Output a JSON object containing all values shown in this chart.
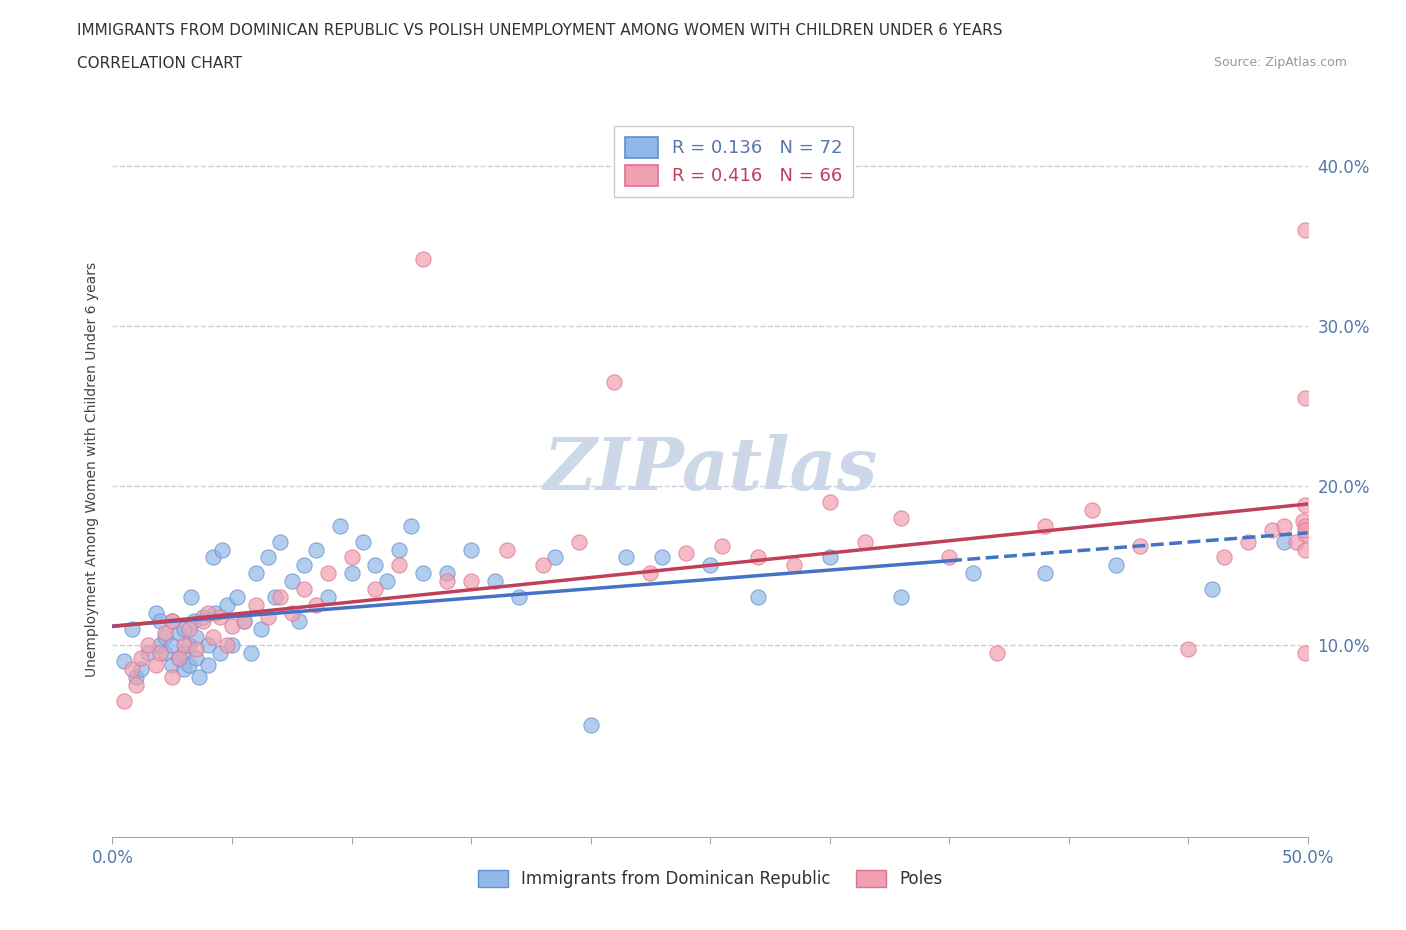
{
  "title_line1": "IMMIGRANTS FROM DOMINICAN REPUBLIC VS POLISH UNEMPLOYMENT AMONG WOMEN WITH CHILDREN UNDER 6 YEARS",
  "title_line2": "CORRELATION CHART",
  "source_text": "Source: ZipAtlas.com",
  "ylabel": "Unemployment Among Women with Children Under 6 years",
  "xlim": [
    0.0,
    0.5
  ],
  "ylim": [
    -0.02,
    0.44
  ],
  "ytick_positions": [
    0.1,
    0.2,
    0.3,
    0.4
  ],
  "ytick_labels": [
    "10.0%",
    "20.0%",
    "30.0%",
    "40.0%"
  ],
  "grid_color": "#c8d0d8",
  "background_color": "#ffffff",
  "series1_color": "#92b8e8",
  "series2_color": "#f0a0b0",
  "series1_edge": "#6090d0",
  "series2_edge": "#e07090",
  "series1_label": "Immigrants from Dominican Republic",
  "series2_label": "Poles",
  "series1_R": "0.136",
  "series1_N": "72",
  "series2_R": "0.416",
  "series2_N": "66",
  "series1_line_color": "#4472c4",
  "series2_line_color": "#c0405a",
  "watermark": "ZIPatlas",
  "watermark_color": "#ccd8e8",
  "axis_color": "#5577aa",
  "series1_x": [
    0.005,
    0.008,
    0.01,
    0.012,
    0.015,
    0.018,
    0.02,
    0.02,
    0.022,
    0.022,
    0.025,
    0.025,
    0.025,
    0.028,
    0.028,
    0.03,
    0.03,
    0.03,
    0.032,
    0.032,
    0.033,
    0.034,
    0.035,
    0.035,
    0.036,
    0.038,
    0.04,
    0.04,
    0.042,
    0.043,
    0.045,
    0.046,
    0.048,
    0.05,
    0.052,
    0.055,
    0.058,
    0.06,
    0.062,
    0.065,
    0.068,
    0.07,
    0.075,
    0.078,
    0.08,
    0.085,
    0.09,
    0.095,
    0.1,
    0.105,
    0.11,
    0.115,
    0.12,
    0.125,
    0.13,
    0.14,
    0.15,
    0.16,
    0.17,
    0.185,
    0.2,
    0.215,
    0.23,
    0.25,
    0.27,
    0.3,
    0.33,
    0.36,
    0.39,
    0.42,
    0.46,
    0.49
  ],
  "series1_y": [
    0.09,
    0.11,
    0.08,
    0.085,
    0.095,
    0.12,
    0.1,
    0.115,
    0.095,
    0.105,
    0.088,
    0.1,
    0.115,
    0.092,
    0.108,
    0.11,
    0.095,
    0.085,
    0.1,
    0.088,
    0.13,
    0.115,
    0.092,
    0.105,
    0.08,
    0.118,
    0.1,
    0.088,
    0.155,
    0.12,
    0.095,
    0.16,
    0.125,
    0.1,
    0.13,
    0.115,
    0.095,
    0.145,
    0.11,
    0.155,
    0.13,
    0.165,
    0.14,
    0.115,
    0.15,
    0.16,
    0.13,
    0.175,
    0.145,
    0.165,
    0.15,
    0.14,
    0.16,
    0.175,
    0.145,
    0.145,
    0.16,
    0.14,
    0.13,
    0.155,
    0.05,
    0.155,
    0.155,
    0.15,
    0.13,
    0.155,
    0.13,
    0.145,
    0.145,
    0.15,
    0.135,
    0.165
  ],
  "series2_x": [
    0.005,
    0.008,
    0.01,
    0.012,
    0.015,
    0.018,
    0.02,
    0.022,
    0.025,
    0.025,
    0.028,
    0.03,
    0.032,
    0.035,
    0.038,
    0.04,
    0.042,
    0.045,
    0.048,
    0.05,
    0.055,
    0.06,
    0.065,
    0.07,
    0.075,
    0.08,
    0.085,
    0.09,
    0.1,
    0.11,
    0.12,
    0.13,
    0.14,
    0.15,
    0.165,
    0.18,
    0.195,
    0.21,
    0.225,
    0.24,
    0.255,
    0.27,
    0.285,
    0.3,
    0.315,
    0.33,
    0.35,
    0.37,
    0.39,
    0.41,
    0.43,
    0.45,
    0.465,
    0.475,
    0.485,
    0.49,
    0.495,
    0.498,
    0.499,
    0.499,
    0.499,
    0.499,
    0.499,
    0.499,
    0.499,
    0.499
  ],
  "series2_y": [
    0.065,
    0.085,
    0.075,
    0.092,
    0.1,
    0.088,
    0.095,
    0.108,
    0.08,
    0.115,
    0.092,
    0.1,
    0.11,
    0.098,
    0.115,
    0.12,
    0.105,
    0.118,
    0.1,
    0.112,
    0.115,
    0.125,
    0.118,
    0.13,
    0.12,
    0.135,
    0.125,
    0.145,
    0.155,
    0.135,
    0.15,
    0.342,
    0.14,
    0.14,
    0.16,
    0.15,
    0.165,
    0.265,
    0.145,
    0.158,
    0.162,
    0.155,
    0.15,
    0.19,
    0.165,
    0.18,
    0.155,
    0.095,
    0.175,
    0.185,
    0.162,
    0.098,
    0.155,
    0.165,
    0.172,
    0.175,
    0.165,
    0.178,
    0.16,
    0.175,
    0.36,
    0.255,
    0.095,
    0.17,
    0.172,
    0.188
  ]
}
